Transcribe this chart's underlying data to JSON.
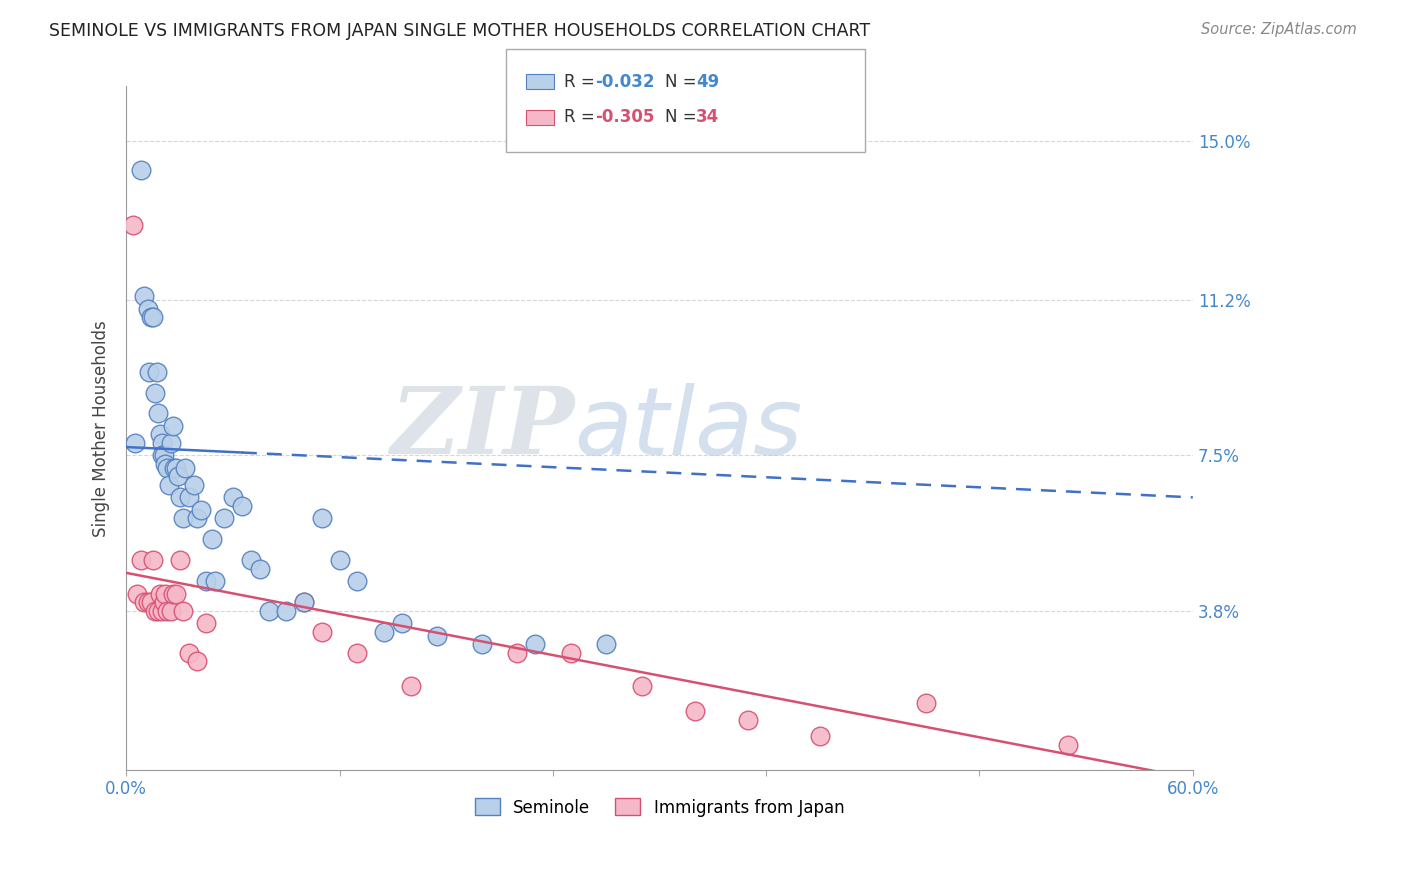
{
  "title": "SEMINOLE VS IMMIGRANTS FROM JAPAN SINGLE MOTHER HOUSEHOLDS CORRELATION CHART",
  "source": "Source: ZipAtlas.com",
  "ylabel_label": "Single Mother Households",
  "ytick_labels": [
    "15.0%",
    "11.2%",
    "7.5%",
    "3.8%"
  ],
  "ytick_values": [
    0.15,
    0.112,
    0.075,
    0.038
  ],
  "xlim": [
    0.0,
    0.6
  ],
  "ylim": [
    0.0,
    0.163
  ],
  "legend_label1": "Seminole",
  "legend_label2": "Immigrants from Japan",
  "legend_R1": "R = -0.032",
  "legend_N1": "N = 49",
  "legend_R2": "R = -0.305",
  "legend_N2": "N = 34",
  "watermark1": "ZIP",
  "watermark2": "atlas",
  "seminole_color": "#b8d0e8",
  "japan_color": "#f5b8c8",
  "seminole_edge_color": "#5580c0",
  "japan_edge_color": "#d85070",
  "seminole_line_color": "#4070c8",
  "japan_line_color": "#d85070",
  "seminole_scatter_x": [
    0.005,
    0.008,
    0.01,
    0.012,
    0.013,
    0.014,
    0.015,
    0.016,
    0.017,
    0.018,
    0.019,
    0.02,
    0.02,
    0.021,
    0.022,
    0.023,
    0.024,
    0.025,
    0.026,
    0.027,
    0.028,
    0.029,
    0.03,
    0.032,
    0.033,
    0.035,
    0.038,
    0.04,
    0.042,
    0.045,
    0.048,
    0.05,
    0.055,
    0.06,
    0.065,
    0.07,
    0.075,
    0.08,
    0.09,
    0.1,
    0.11,
    0.12,
    0.13,
    0.145,
    0.155,
    0.175,
    0.2,
    0.23,
    0.27
  ],
  "seminole_scatter_y": [
    0.078,
    0.143,
    0.113,
    0.11,
    0.095,
    0.108,
    0.108,
    0.09,
    0.095,
    0.085,
    0.08,
    0.078,
    0.075,
    0.075,
    0.073,
    0.072,
    0.068,
    0.078,
    0.082,
    0.072,
    0.072,
    0.07,
    0.065,
    0.06,
    0.072,
    0.065,
    0.068,
    0.06,
    0.062,
    0.045,
    0.055,
    0.045,
    0.06,
    0.065,
    0.063,
    0.05,
    0.048,
    0.038,
    0.038,
    0.04,
    0.06,
    0.05,
    0.045,
    0.033,
    0.035,
    0.032,
    0.03,
    0.03,
    0.03
  ],
  "japan_scatter_x": [
    0.004,
    0.006,
    0.008,
    0.01,
    0.012,
    0.014,
    0.015,
    0.016,
    0.018,
    0.019,
    0.02,
    0.021,
    0.022,
    0.023,
    0.025,
    0.026,
    0.028,
    0.03,
    0.032,
    0.035,
    0.04,
    0.045,
    0.1,
    0.11,
    0.13,
    0.16,
    0.22,
    0.25,
    0.29,
    0.32,
    0.35,
    0.39,
    0.45,
    0.53
  ],
  "japan_scatter_y": [
    0.13,
    0.042,
    0.05,
    0.04,
    0.04,
    0.04,
    0.05,
    0.038,
    0.038,
    0.042,
    0.038,
    0.04,
    0.042,
    0.038,
    0.038,
    0.042,
    0.042,
    0.05,
    0.038,
    0.028,
    0.026,
    0.035,
    0.04,
    0.033,
    0.028,
    0.02,
    0.028,
    0.028,
    0.02,
    0.014,
    0.012,
    0.008,
    0.016,
    0.006
  ],
  "seminole_trend_x0": 0.0,
  "seminole_trend_x_solid_end": 0.065,
  "seminole_trend_x1": 0.6,
  "seminole_trend_y0": 0.077,
  "seminole_trend_y1": 0.065,
  "japan_trend_x0": 0.0,
  "japan_trend_x1": 0.6,
  "japan_trend_y0": 0.047,
  "japan_trend_y1": -0.002,
  "background_color": "#ffffff",
  "grid_color": "#cccccc",
  "title_color": "#222222",
  "axis_label_color": "#4488cc"
}
